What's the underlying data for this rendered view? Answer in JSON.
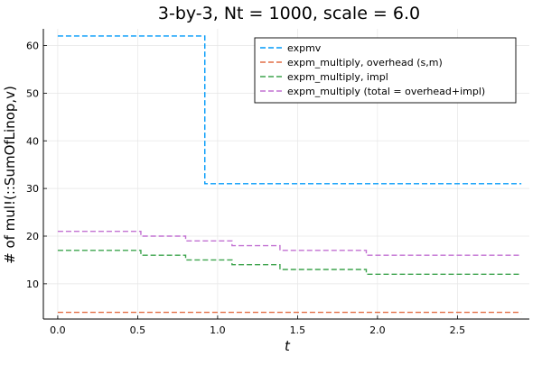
{
  "chart_data": {
    "type": "line",
    "title": "3-by-3, Nt = 1000, scale = 6.0",
    "xlabel": "t",
    "ylabel": "# of mul!(::SumOfLinop,v)",
    "xlim": [
      -0.09,
      2.95
    ],
    "ylim": [
      2.6,
      63.5
    ],
    "xticks": [
      0.0,
      0.5,
      1.0,
      1.5,
      2.0,
      2.5
    ],
    "xtick_labels": [
      "0.0",
      "0.5",
      "1.0",
      "1.5",
      "2.0",
      "2.5"
    ],
    "yticks": [
      10,
      20,
      30,
      40,
      50,
      60
    ],
    "ytick_labels": [
      "10",
      "20",
      "30",
      "40",
      "50",
      "60"
    ],
    "grid": true,
    "legend_position": "top-right",
    "series": [
      {
        "name": "expmv",
        "color": "#009af9",
        "dashed": true,
        "step": true,
        "points": [
          [
            0.0,
            62
          ],
          [
            0.92,
            62
          ],
          [
            0.92,
            31
          ],
          [
            2.9,
            31
          ]
        ]
      },
      {
        "name": "expm_multiply, overhead (s,m)",
        "color": "#e26f46",
        "dashed": true,
        "step": true,
        "points": [
          [
            0.0,
            4
          ],
          [
            2.9,
            4
          ]
        ]
      },
      {
        "name": "expm_multiply, impl",
        "color": "#3da44d",
        "dashed": true,
        "step": true,
        "points": [
          [
            0.0,
            17
          ],
          [
            0.52,
            17
          ],
          [
            0.52,
            16
          ],
          [
            0.8,
            16
          ],
          [
            0.8,
            15
          ],
          [
            1.09,
            15
          ],
          [
            1.09,
            14
          ],
          [
            1.39,
            14
          ],
          [
            1.39,
            13
          ],
          [
            1.93,
            13
          ],
          [
            1.93,
            12
          ],
          [
            2.9,
            12
          ]
        ]
      },
      {
        "name": "expm_multiply (total = overhead+impl)",
        "color": "#c271d2",
        "dashed": true,
        "step": true,
        "points": [
          [
            0.0,
            21
          ],
          [
            0.52,
            21
          ],
          [
            0.52,
            20
          ],
          [
            0.8,
            20
          ],
          [
            0.8,
            19
          ],
          [
            1.09,
            19
          ],
          [
            1.09,
            18
          ],
          [
            1.39,
            18
          ],
          [
            1.39,
            17
          ],
          [
            1.93,
            17
          ],
          [
            1.93,
            16
          ],
          [
            2.9,
            16
          ]
        ]
      }
    ]
  }
}
